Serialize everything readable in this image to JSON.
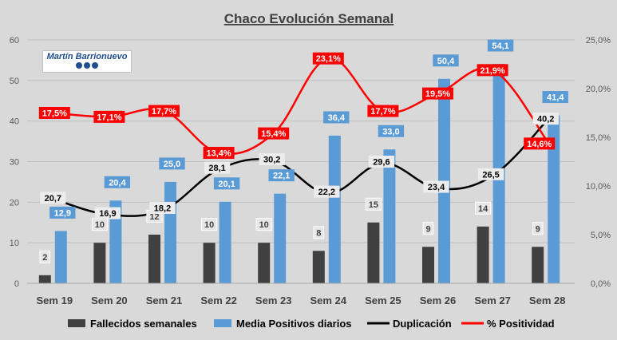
{
  "chart_data": {
    "type": "bar",
    "title": "Chaco Evolución Semanal",
    "categories": [
      "Sem 19",
      "Sem 20",
      "Sem 21",
      "Sem 22",
      "Sem 23",
      "Sem 24",
      "Sem 25",
      "Sem 26",
      "Sem 27",
      "Sem 28"
    ],
    "ylim": [
      0,
      60
    ],
    "yticks": [
      "0",
      "10",
      "20",
      "30",
      "40",
      "50",
      "60"
    ],
    "y2lim": [
      0,
      25
    ],
    "y2ticks": [
      "0,0%",
      "5,0%",
      "10,0%",
      "15,0%",
      "20,0%",
      "25,0%"
    ],
    "series": [
      {
        "name": "Fallecidos semanales",
        "type": "bar",
        "axis": "left",
        "color": "#404040",
        "values": [
          2,
          10,
          12,
          10,
          10,
          8,
          15,
          9,
          14,
          9
        ],
        "labels": [
          "2",
          "10",
          "12",
          "10",
          "10",
          "8",
          "15",
          "9",
          "14",
          "9"
        ]
      },
      {
        "name": "Media Positivos diarios",
        "type": "bar",
        "axis": "left",
        "color": "#5b9bd5",
        "values": [
          12.9,
          20.4,
          25.0,
          20.1,
          22.1,
          36.4,
          33.0,
          50.4,
          54.1,
          41.4
        ],
        "labels": [
          "12,9",
          "20,4",
          "25,0",
          "20,1",
          "22,1",
          "36,4",
          "33,0",
          "50,4",
          "54,1",
          "41,4"
        ]
      },
      {
        "name": "Duplicación",
        "type": "line",
        "axis": "left",
        "color": "#000000",
        "values": [
          20.7,
          16.9,
          18.2,
          28.1,
          30.2,
          22.2,
          29.6,
          23.4,
          26.5,
          40.2
        ],
        "labels": [
          "20,7",
          "16,9",
          "18,2",
          "28,1",
          "30,2",
          "22,2",
          "29,6",
          "23,4",
          "26,5",
          "40,2"
        ]
      },
      {
        "name": "% Positividad",
        "type": "line",
        "axis": "right",
        "color": "#ff0000",
        "values": [
          17.5,
          17.1,
          17.7,
          13.4,
          15.4,
          23.1,
          17.7,
          19.5,
          21.9,
          14.6
        ],
        "labels": [
          "17,5%",
          "17,1%",
          "17,7%",
          "13,4%",
          "15,4%",
          "23,1%",
          "17,7%",
          "19,5%",
          "21,9%",
          "14,6%"
        ]
      }
    ],
    "legend": "bottom",
    "grid": true
  },
  "logo": {
    "name": "Martín Barrionuevo",
    "icons": [
      "facebook-icon",
      "twitter-icon",
      "youtube-icon"
    ]
  }
}
